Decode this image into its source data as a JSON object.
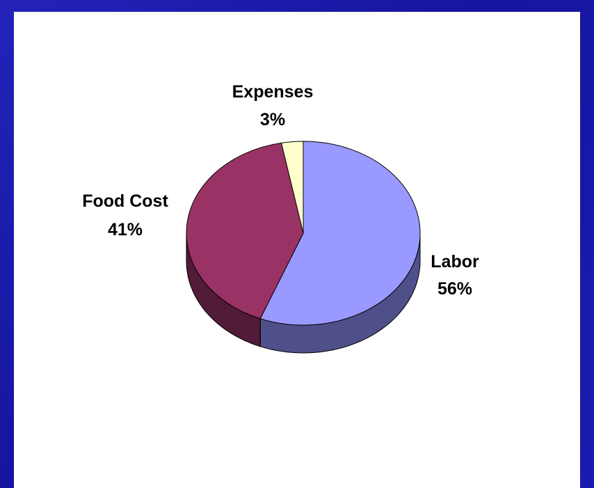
{
  "chart_data": {
    "type": "pie",
    "title": "",
    "three_d": true,
    "slices": [
      {
        "label": "Labor",
        "percent_label": "56%",
        "value": 56,
        "color": "#9999ff",
        "side_color": "#4f4f8a"
      },
      {
        "label": "Food Cost",
        "percent_label": "41%",
        "value": 41,
        "color": "#993366",
        "side_color": "#521b37"
      },
      {
        "label": "Expenses",
        "percent_label": "3%",
        "value": 3,
        "color": "#ffffcc",
        "side_color": "#9a9a78"
      }
    ]
  }
}
